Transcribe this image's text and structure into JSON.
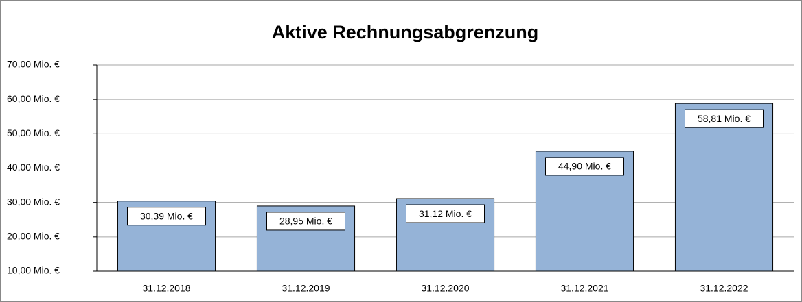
{
  "chart_data": {
    "type": "bar",
    "title": "Aktive Rechnungsabgrenzung",
    "categories": [
      "31.12.2018",
      "31.12.2019",
      "31.12.2020",
      "31.12.2021",
      "31.12.2022"
    ],
    "values": [
      30.39,
      28.95,
      31.12,
      44.9,
      58.81
    ],
    "value_labels": [
      "30,39 Mio. €",
      "28,95 Mio. €",
      "31,12 Mio. €",
      "44,90 Mio. €",
      "58,81 Mio. €"
    ],
    "color": "#95b3d7",
    "ylim": [
      10,
      70
    ],
    "yticks": [
      {
        "value": 10,
        "label": "10,00 Mio. €"
      },
      {
        "value": 20,
        "label": "20,00 Mio. €"
      },
      {
        "value": 30,
        "label": "30,00 Mio. €"
      },
      {
        "value": 40,
        "label": "40,00 Mio. €"
      },
      {
        "value": 50,
        "label": "50,00 Mio. €"
      },
      {
        "value": 60,
        "label": "60,00 Mio. €"
      },
      {
        "value": 70,
        "label": "70,00 Mio. €"
      }
    ],
    "grid": true
  }
}
